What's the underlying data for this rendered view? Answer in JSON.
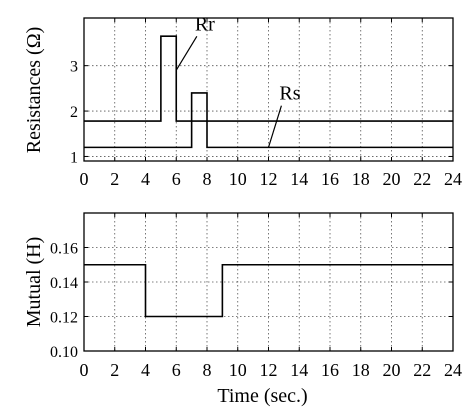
{
  "chart_data": [
    {
      "type": "line",
      "step": true,
      "ylabel": "Resistances (Ω)",
      "xlabel": "",
      "xlim": [
        0,
        24
      ],
      "ylim": [
        0.9,
        4.05
      ],
      "xticks": [
        0,
        2,
        4,
        6,
        8,
        10,
        12,
        14,
        16,
        18,
        20,
        22,
        24
      ],
      "yticks": [
        1,
        2,
        3
      ],
      "grid": true,
      "series": [
        {
          "name": "Rr",
          "x": [
            0,
            5,
            5,
            6,
            6,
            24
          ],
          "y": [
            1.78,
            1.78,
            3.65,
            3.65,
            1.78,
            1.78
          ]
        },
        {
          "name": "Rs",
          "x": [
            0,
            7,
            7,
            8,
            8,
            24
          ],
          "y": [
            1.2,
            1.2,
            2.4,
            2.4,
            1.2,
            1.2
          ]
        }
      ],
      "annotations": [
        {
          "text": "Rr",
          "x": 7.6,
          "y": 3.78,
          "pointer_x": 6.0,
          "pointer_y": 2.9
        },
        {
          "text": "Rs",
          "x": 13.1,
          "y": 2.25,
          "pointer_x": 12.0,
          "pointer_y": 1.2
        }
      ]
    },
    {
      "type": "line",
      "step": true,
      "ylabel": "Mutual (H)",
      "xlabel": "Time (sec.)",
      "xlim": [
        0,
        24
      ],
      "ylim": [
        0.1,
        0.18
      ],
      "xticks": [
        0,
        2,
        4,
        6,
        8,
        10,
        12,
        14,
        16,
        18,
        20,
        22,
        24
      ],
      "yticks": [
        0.1,
        0.12,
        0.14,
        0.16
      ],
      "grid": true,
      "series": [
        {
          "name": "",
          "x": [
            0,
            4,
            4,
            9,
            9,
            24
          ],
          "y": [
            0.15,
            0.15,
            0.12,
            0.12,
            0.15,
            0.15
          ]
        }
      ]
    }
  ]
}
